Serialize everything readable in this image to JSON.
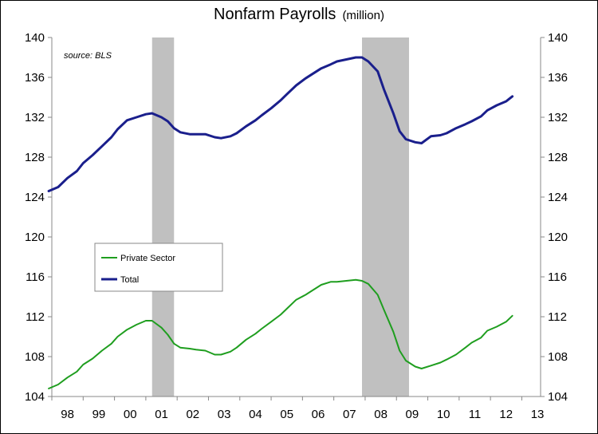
{
  "chart_data": {
    "type": "line",
    "title": "Nonfarm Payrolls",
    "title_unit": "(million)",
    "source_note": "source: BLS",
    "x_tick_labels": [
      "98",
      "99",
      "00",
      "01",
      "02",
      "03",
      "04",
      "05",
      "06",
      "07",
      "08",
      "09",
      "10",
      "11",
      "12",
      "13"
    ],
    "y_ticks": [
      104,
      108,
      112,
      116,
      120,
      124,
      128,
      132,
      136,
      140
    ],
    "ylim": [
      104,
      140
    ],
    "xlim": [
      1998.0,
      2013.6
    ],
    "y_axis_both_sides": true,
    "grid": false,
    "legend_position": "center-left",
    "recessions": [
      {
        "start": 2001.2,
        "end": 2001.9
      },
      {
        "start": 2007.9,
        "end": 2009.4
      }
    ],
    "series": [
      {
        "name": "Private Sector",
        "color": "#1f9e1f",
        "x": [
          1997.9,
          1998.2,
          1998.5,
          1998.8,
          1999.0,
          1999.3,
          1999.6,
          1999.9,
          2000.1,
          2000.4,
          2000.7,
          2001.0,
          2001.2,
          2001.5,
          2001.7,
          2001.9,
          2002.1,
          2002.4,
          2002.6,
          2002.9,
          2003.2,
          2003.4,
          2003.7,
          2003.9,
          2004.2,
          2004.5,
          2004.7,
          2005.0,
          2005.3,
          2005.5,
          2005.8,
          2006.1,
          2006.3,
          2006.6,
          2006.9,
          2007.1,
          2007.4,
          2007.7,
          2007.9,
          2008.1,
          2008.4,
          2008.6,
          2008.9,
          2009.1,
          2009.3,
          2009.6,
          2009.8,
          2010.1,
          2010.4,
          2010.6,
          2010.9,
          2011.2,
          2011.4,
          2011.7,
          2011.9,
          2012.2,
          2012.5,
          2012.7
        ],
        "values": [
          104.8,
          105.2,
          105.9,
          106.5,
          107.2,
          107.8,
          108.6,
          109.3,
          110.0,
          110.7,
          111.2,
          111.6,
          111.6,
          110.9,
          110.2,
          109.3,
          108.9,
          108.8,
          108.7,
          108.6,
          108.2,
          108.2,
          108.5,
          108.9,
          109.7,
          110.3,
          110.8,
          111.5,
          112.2,
          112.8,
          113.7,
          114.2,
          114.6,
          115.2,
          115.5,
          115.5,
          115.6,
          115.7,
          115.6,
          115.3,
          114.2,
          112.7,
          110.5,
          108.6,
          107.6,
          107.0,
          106.8,
          107.1,
          107.4,
          107.7,
          108.2,
          108.9,
          109.4,
          109.9,
          110.6,
          111.0,
          111.5,
          112.1
        ]
      },
      {
        "name": "Total",
        "color": "#1a1f8c",
        "x": [
          1997.9,
          1998.2,
          1998.5,
          1998.8,
          1999.0,
          1999.3,
          1999.6,
          1999.9,
          2000.1,
          2000.4,
          2000.7,
          2001.0,
          2001.2,
          2001.5,
          2001.7,
          2001.9,
          2002.1,
          2002.4,
          2002.6,
          2002.9,
          2003.2,
          2003.4,
          2003.7,
          2003.9,
          2004.2,
          2004.5,
          2004.7,
          2005.0,
          2005.3,
          2005.5,
          2005.8,
          2006.1,
          2006.3,
          2006.6,
          2006.9,
          2007.1,
          2007.4,
          2007.7,
          2007.9,
          2008.1,
          2008.4,
          2008.6,
          2008.9,
          2009.1,
          2009.3,
          2009.6,
          2009.8,
          2010.1,
          2010.4,
          2010.6,
          2010.9,
          2011.2,
          2011.4,
          2011.7,
          2011.9,
          2012.2,
          2012.5,
          2012.7
        ],
        "values": [
          124.6,
          125.0,
          125.9,
          126.6,
          127.4,
          128.2,
          129.1,
          130.0,
          130.8,
          131.7,
          132.0,
          132.3,
          132.4,
          132.0,
          131.6,
          130.9,
          130.5,
          130.3,
          130.3,
          130.3,
          130.0,
          129.9,
          130.1,
          130.4,
          131.1,
          131.7,
          132.2,
          132.9,
          133.7,
          134.3,
          135.2,
          135.9,
          136.3,
          136.9,
          137.3,
          137.6,
          137.8,
          138.0,
          138.0,
          137.6,
          136.6,
          134.8,
          132.4,
          130.6,
          129.8,
          129.5,
          129.4,
          130.1,
          130.2,
          130.4,
          130.9,
          131.3,
          131.6,
          132.1,
          132.7,
          133.2,
          133.6,
          134.1
        ]
      }
    ]
  }
}
